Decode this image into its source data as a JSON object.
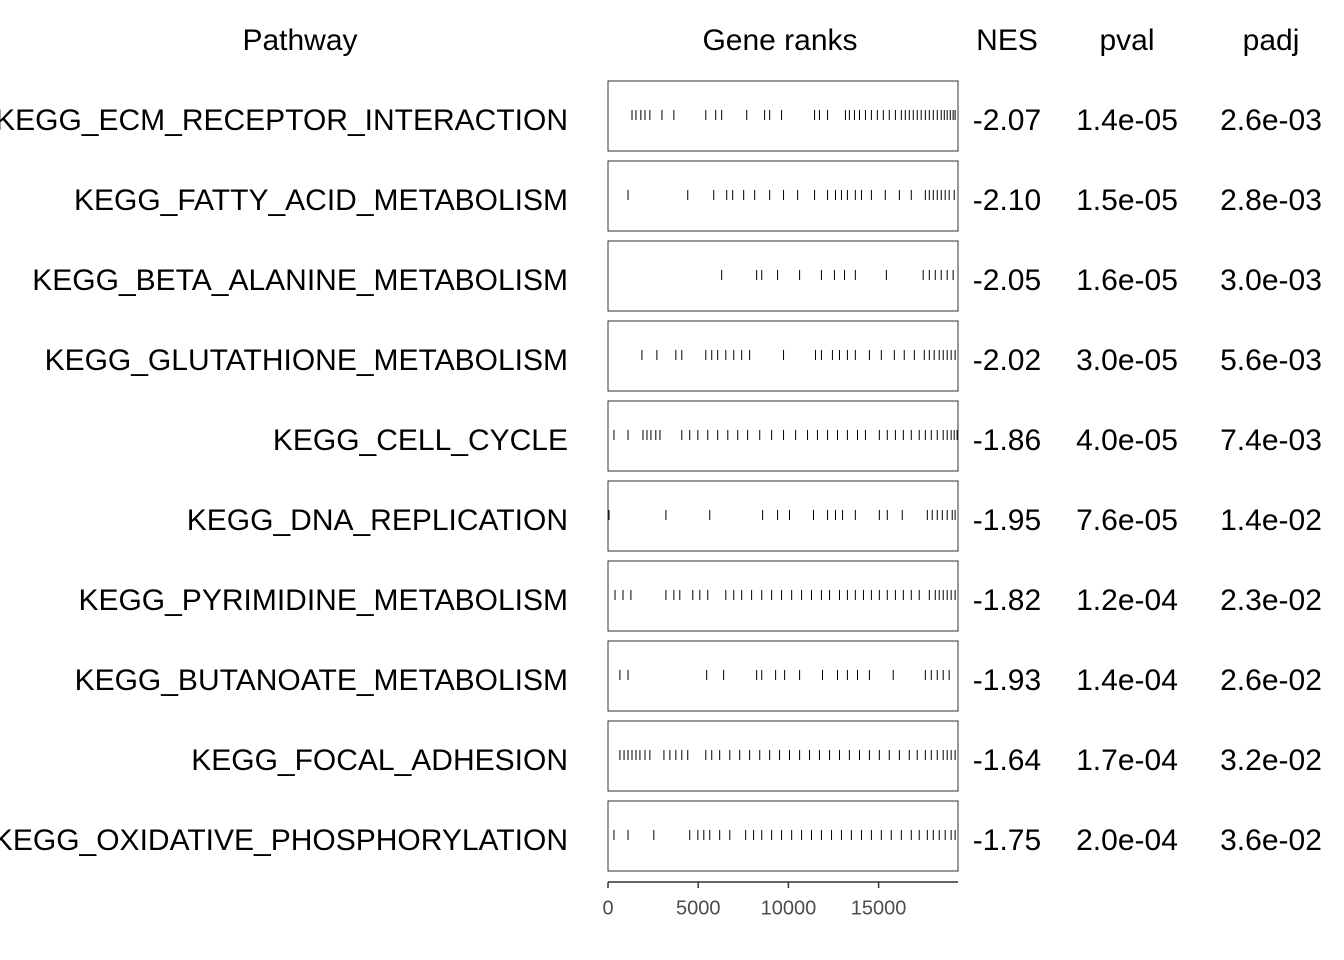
{
  "header": {
    "pathway": "Pathway",
    "ranks": "Gene ranks",
    "nes": "NES",
    "pval": "pval",
    "padj": "padj"
  },
  "axis": {
    "xlim": [
      0,
      19400
    ],
    "xticks": [
      0,
      5000,
      10000,
      15000
    ]
  },
  "rows": [
    {
      "pathway": "KEGG_ECM_RECEPTOR_INTERACTION",
      "nes": "-2.07",
      "pval": "1.4e-05",
      "padj": "2.6e-03",
      "ranks": [
        1330,
        1550,
        1820,
        2050,
        2320,
        2990,
        3650,
        5420,
        5970,
        6300,
        7690,
        8680,
        8960,
        9620,
        11450,
        11720,
        12170,
        13160,
        13380,
        13660,
        13940,
        14270,
        14600,
        14930,
        15260,
        15590,
        15930,
        16260,
        16480,
        16700,
        16920,
        17140,
        17360,
        17590,
        17810,
        18030,
        18250,
        18470,
        18640,
        18800,
        18970,
        19130,
        19240
      ]
    },
    {
      "pathway": "KEGG_FATTY_ACID_METABOLISM",
      "nes": "-2.10",
      "pval": "1.5e-05",
      "padj": "2.8e-03",
      "ranks": [
        1110,
        4420,
        5860,
        6580,
        6910,
        7520,
        8130,
        8960,
        9730,
        10510,
        11450,
        12170,
        12610,
        12940,
        13270,
        13710,
        14050,
        14600,
        15370,
        16150,
        16810,
        17590,
        17810,
        18030,
        18250,
        18470,
        18690,
        18910,
        19190
      ]
    },
    {
      "pathway": "KEGG_BETA_ALANINE_METABOLISM",
      "nes": "-2.05",
      "pval": "1.6e-05",
      "padj": "3.0e-03",
      "ranks": [
        6300,
        8240,
        8520,
        9400,
        10620,
        11830,
        12550,
        13110,
        13710,
        15430,
        17470,
        17810,
        18140,
        18470,
        18800,
        19130
      ]
    },
    {
      "pathway": "KEGG_GLUTATHIONE_METABOLISM",
      "nes": "-2.02",
      "pval": "3.0e-05",
      "padj": "5.6e-03",
      "ranks": [
        1880,
        2710,
        3760,
        4090,
        5420,
        5750,
        6080,
        6530,
        6970,
        7410,
        7850,
        9730,
        11500,
        11830,
        12440,
        12830,
        13270,
        13710,
        14490,
        15150,
        15870,
        16420,
        16980,
        17530,
        17810,
        18080,
        18360,
        18580,
        18800,
        19020,
        19240
      ]
    },
    {
      "pathway": "KEGG_CELL_CYCLE",
      "nes": "-1.86",
      "pval": "4.0e-05",
      "padj": "7.4e-03",
      "ranks": [
        330,
        1110,
        1940,
        2160,
        2380,
        2650,
        2880,
        4090,
        4530,
        4980,
        5530,
        6080,
        6640,
        7190,
        7740,
        8410,
        9070,
        9730,
        10400,
        11060,
        11610,
        12170,
        12720,
        13270,
        13830,
        14270,
        15040,
        15480,
        15930,
        16370,
        16810,
        17250,
        17590,
        17920,
        18250,
        18580,
        18800,
        19020,
        19190,
        19350
      ]
    },
    {
      "pathway": "KEGG_DNA_REPLICATION",
      "nes": "-1.95",
      "pval": "7.6e-05",
      "padj": "1.4e-02",
      "ranks": [
        55,
        3210,
        5640,
        8570,
        9400,
        10060,
        11390,
        12170,
        12610,
        13000,
        13710,
        15040,
        15480,
        16310,
        17700,
        17970,
        18250,
        18530,
        18800,
        19080,
        19240
      ]
    },
    {
      "pathway": "KEGG_PYRIMIDINE_METABOLISM",
      "nes": "-1.82",
      "pval": "1.2e-04",
      "padj": "2.3e-02",
      "ranks": [
        390,
        830,
        1270,
        3210,
        3650,
        3980,
        4700,
        5090,
        5530,
        6530,
        6970,
        7410,
        7960,
        8520,
        9070,
        9620,
        10180,
        10730,
        11280,
        11830,
        12280,
        12830,
        13270,
        13710,
        14160,
        14600,
        15040,
        15480,
        15930,
        16370,
        16810,
        17250,
        17810,
        18140,
        18360,
        18580,
        18800,
        19020,
        19240
      ]
    },
    {
      "pathway": "KEGG_BUTANOATE_METABOLISM",
      "nes": "-1.93",
      "pval": "1.4e-04",
      "padj": "2.6e-02",
      "ranks": [
        660,
        1110,
        5470,
        6410,
        8240,
        8520,
        9290,
        9790,
        10620,
        11890,
        12720,
        13270,
        13830,
        14490,
        15810,
        17590,
        17920,
        18250,
        18580,
        18910
      ]
    },
    {
      "pathway": "KEGG_FOCAL_ADHESION",
      "nes": "-1.64",
      "pval": "1.7e-04",
      "padj": "3.2e-02",
      "ranks": [
        660,
        890,
        1110,
        1330,
        1550,
        1770,
        2050,
        2320,
        3100,
        3430,
        3760,
        4090,
        4420,
        5420,
        5750,
        6190,
        6750,
        7300,
        7850,
        8410,
        8960,
        9510,
        10060,
        10620,
        11170,
        11720,
        12280,
        12830,
        13380,
        13940,
        14490,
        15040,
        15590,
        16150,
        16700,
        17140,
        17590,
        17920,
        18250,
        18580,
        18800,
        19020,
        19240
      ]
    },
    {
      "pathway": "KEGG_OXIDATIVE_PHOSPHORYLATION",
      "nes": "-1.75",
      "pval": "2.0e-04",
      "padj": "3.6e-02",
      "ranks": [
        330,
        1110,
        2540,
        4530,
        4980,
        5310,
        5640,
        6190,
        6750,
        7630,
        8070,
        8520,
        9070,
        9620,
        10180,
        10730,
        11280,
        11830,
        12390,
        12940,
        13490,
        14050,
        14600,
        15150,
        15700,
        16260,
        16810,
        17250,
        17700,
        18030,
        18360,
        18690,
        19020,
        19240
      ]
    }
  ]
}
